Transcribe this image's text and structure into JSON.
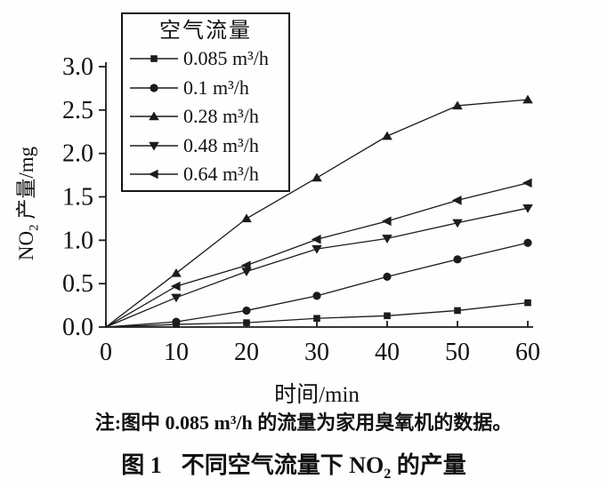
{
  "figure": {
    "ylabel": {
      "pre": "NO",
      "sub": "2",
      "post": " 产量/mg"
    },
    "xlabel": "时间/min",
    "note": "注:图中 0.085 m³/h 的流量为家用臭氧机的数据。",
    "caption": {
      "fig": "图 1",
      "pre": "不同空气流量下 NO",
      "sub": "2",
      "post": " 的产量"
    }
  },
  "chart_data": {
    "type": "line",
    "title": "",
    "xlabel": "时间/min",
    "ylabel": "NO2 产量/mg",
    "x": [
      0,
      10,
      20,
      30,
      40,
      50,
      60
    ],
    "xlim": [
      0,
      60
    ],
    "ylim": [
      0,
      3.0
    ],
    "xticks": [
      "0",
      "10",
      "20",
      "30",
      "40",
      "50",
      "60"
    ],
    "yticks": [
      "0.0",
      "0.5",
      "1.0",
      "1.5",
      "2.0",
      "2.5",
      "3.0"
    ],
    "grid": false,
    "legend": {
      "title": "空气流量",
      "position": "upper-left-inside"
    },
    "series": [
      {
        "name": "0.085 m³/h",
        "marker": "square",
        "values": [
          0,
          0.03,
          0.05,
          0.1,
          0.13,
          0.19,
          0.28
        ]
      },
      {
        "name": "0.1 m³/h",
        "marker": "circle",
        "values": [
          0,
          0.06,
          0.19,
          0.36,
          0.58,
          0.78,
          0.97
        ]
      },
      {
        "name": "0.28 m³/h",
        "marker": "triangle-up",
        "values": [
          0,
          0.62,
          1.25,
          1.72,
          2.2,
          2.55,
          2.62
        ]
      },
      {
        "name": "0.48 m³/h",
        "marker": "triangle-down",
        "values": [
          0,
          0.34,
          0.64,
          0.9,
          1.02,
          1.2,
          1.37
        ]
      },
      {
        "name": "0.64 m³/h",
        "marker": "triangle-left",
        "values": [
          0,
          0.47,
          0.71,
          1.01,
          1.22,
          1.46,
          1.66
        ]
      }
    ],
    "colors": {
      "line": "#1c1c1c",
      "text": "#111111",
      "background": "#fefefe"
    }
  }
}
